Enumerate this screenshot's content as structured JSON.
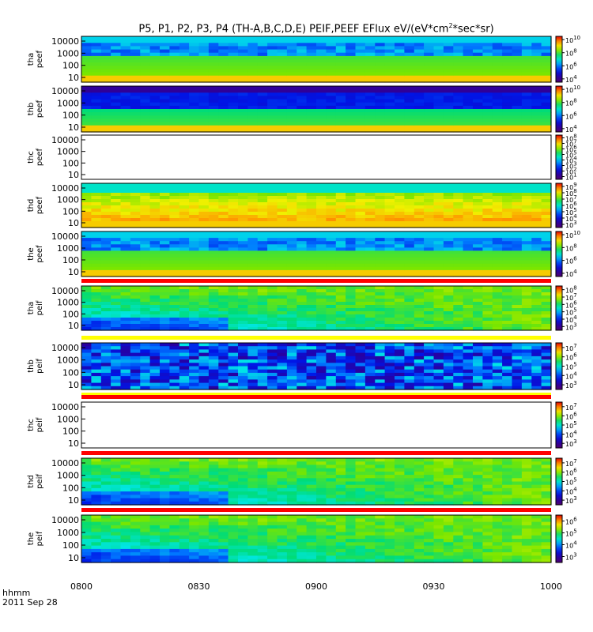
{
  "title": {
    "prefix": "P5, P1, P2, P3, P4 (TH-A,B,C,D,E) PEIF,PEEF EFlux eV/(eV*cm",
    "sup": "2",
    "suffix": "*sec*sr)"
  },
  "footer": {
    "label": "hhmm",
    "date": "2011 Sep 28"
  },
  "chart_data": {
    "type": "heatmap",
    "x_ticks": [
      "0800",
      "0830",
      "0900",
      "0930",
      "1000"
    ],
    "x_range": [
      "08:00",
      "10:00"
    ],
    "y_ticks": [
      "10",
      "100",
      "1000",
      "10000"
    ],
    "y_scale": "log",
    "colormap": "rainbow (purple-blue-cyan-green-yellow-red)",
    "panels": [
      {
        "label": [
          "tha",
          "peef"
        ],
        "cbar": [
          [
            "10",
            "10"
          ],
          [
            "8",
            "10"
          ],
          [
            "6",
            "10"
          ],
          [
            "4",
            "10"
          ]
        ],
        "crange": [
          3.5,
          10.5
        ],
        "status": "data"
      },
      {
        "label": [
          "thb",
          "peef"
        ],
        "cbar": [
          [
            "10",
            "10"
          ],
          [
            "8",
            "10"
          ],
          [
            "6",
            "10"
          ],
          [
            "4",
            "10"
          ]
        ],
        "crange": [
          3.5,
          10.5
        ],
        "status": "data"
      },
      {
        "label": [
          "thc",
          "peef"
        ],
        "cbar": [
          [
            "8",
            "10"
          ],
          [
            "7",
            "10"
          ],
          [
            "6",
            "10"
          ],
          [
            "5",
            "10"
          ],
          [
            "4",
            "10"
          ],
          [
            "3",
            "10"
          ],
          [
            "2",
            "10"
          ],
          [
            "1",
            "10"
          ]
        ],
        "crange": [
          0.5,
          8.5
        ],
        "status": "empty"
      },
      {
        "label": [
          "thd",
          "peef"
        ],
        "cbar": [
          [
            "9",
            "10"
          ],
          [
            "8",
            "10"
          ],
          [
            "7",
            "10"
          ],
          [
            "6",
            "10"
          ],
          [
            "5",
            "10"
          ],
          [
            "4",
            "10"
          ],
          [
            "3",
            "10"
          ]
        ],
        "crange": [
          2.5,
          9.5
        ],
        "status": "data"
      },
      {
        "label": [
          "the",
          "peef"
        ],
        "cbar": [
          [
            "10",
            "10"
          ],
          [
            "8",
            "10"
          ],
          [
            "6",
            "10"
          ],
          [
            "4",
            "10"
          ]
        ],
        "crange": [
          3.5,
          10.5
        ],
        "status": "data"
      },
      {
        "label": [
          "tha",
          "peif"
        ],
        "cbar": [
          [
            "8",
            "10"
          ],
          [
            "7",
            "10"
          ],
          [
            "6",
            "10"
          ],
          [
            "5",
            "10"
          ],
          [
            "4",
            "10"
          ],
          [
            "3",
            "10"
          ]
        ],
        "crange": [
          2.5,
          8.5
        ],
        "status": "data"
      },
      {
        "label": [
          "thb",
          "peif"
        ],
        "cbar": [
          [
            "7",
            "10"
          ],
          [
            "6",
            "10"
          ],
          [
            "5",
            "10"
          ],
          [
            "4",
            "10"
          ],
          [
            "3",
            "10"
          ]
        ],
        "crange": [
          2.5,
          7.5
        ],
        "status": "data"
      },
      {
        "label": [
          "thc",
          "peif"
        ],
        "cbar": [
          [
            "7",
            "10"
          ],
          [
            "6",
            "10"
          ],
          [
            "5",
            "10"
          ],
          [
            "4",
            "10"
          ],
          [
            "3",
            "10"
          ]
        ],
        "crange": [
          2.5,
          7.5
        ],
        "status": "empty"
      },
      {
        "label": [
          "thd",
          "peif"
        ],
        "cbar": [
          [
            "7",
            "10"
          ],
          [
            "6",
            "10"
          ],
          [
            "5",
            "10"
          ],
          [
            "4",
            "10"
          ],
          [
            "3",
            "10"
          ]
        ],
        "crange": [
          2.5,
          7.5
        ],
        "status": "data"
      },
      {
        "label": [
          "the",
          "peif"
        ],
        "cbar": [
          [
            "6",
            "10"
          ],
          [
            "5",
            "10"
          ],
          [
            "4",
            "10"
          ],
          [
            "3",
            "10"
          ]
        ],
        "crange": [
          2.5,
          6.5
        ],
        "status": "data"
      }
    ]
  }
}
